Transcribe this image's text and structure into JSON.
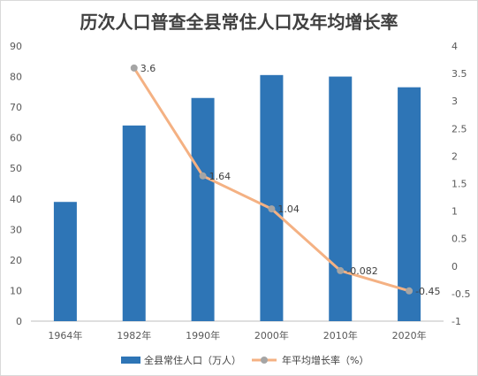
{
  "chart_data": {
    "type": "bar+line",
    "title": "历次人口普查全县常住人口及年均增长率",
    "categories": [
      "1964年",
      "1982年",
      "1990年",
      "2000年",
      "2010年",
      "2020年"
    ],
    "series": [
      {
        "name": "全县常住人口（万人）",
        "type": "bar",
        "axis": "left",
        "color": "#2e75b6",
        "values": [
          39,
          64,
          73,
          80.5,
          80,
          76.5
        ]
      },
      {
        "name": "年平均增长率（%）",
        "type": "line",
        "axis": "right",
        "color": "#f4b183",
        "marker_color": "#a5a5a5",
        "values": [
          null,
          3.6,
          1.64,
          1.04,
          -0.082,
          -0.45
        ],
        "labels": [
          "",
          "3.6",
          "1.64",
          "1.04",
          "-0.082",
          "-0.45"
        ]
      }
    ],
    "y_left": {
      "min": 0,
      "max": 90,
      "step": 10,
      "ticks": [
        "0",
        "10",
        "20",
        "30",
        "40",
        "50",
        "60",
        "70",
        "80",
        "90"
      ]
    },
    "y_right": {
      "min": -1,
      "max": 4,
      "step": 0.5,
      "ticks": [
        "-1",
        "-0.5",
        "0",
        "0.5",
        "1",
        "1.5",
        "2",
        "2.5",
        "3",
        "3.5",
        "4"
      ]
    },
    "grid": false,
    "legend": "bottom"
  }
}
